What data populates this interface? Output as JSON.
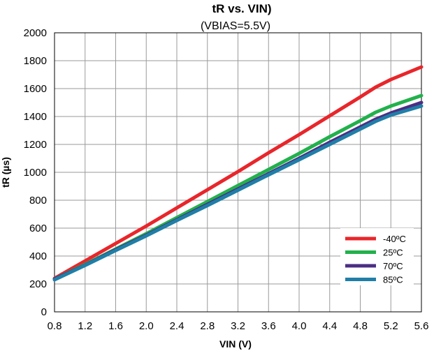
{
  "chart_data": {
    "type": "line",
    "title": "tR vs. VIN)",
    "subtitle": "(VBIAS=5.5V)",
    "xlabel": "VIN (V)",
    "ylabel": "tR (µs)",
    "xlim": [
      0.8,
      5.6
    ],
    "ylim": [
      0,
      2000
    ],
    "x_ticks": [
      "0.8",
      "1.2",
      "1.6",
      "2.0",
      "2.4",
      "2.8",
      "3.2",
      "3.6",
      "4.0",
      "4.4",
      "4.8",
      "5.2",
      "5.6"
    ],
    "y_ticks": [
      "0",
      "200",
      "400",
      "600",
      "800",
      "1000",
      "1200",
      "1400",
      "1600",
      "1800",
      "2000"
    ],
    "grid": true,
    "legend_position": "bottom-right",
    "series": [
      {
        "name": "-40ºC",
        "color": "#e8262b",
        "x": [
          0.8,
          1.2,
          1.6,
          2.0,
          2.4,
          2.8,
          3.2,
          3.6,
          4.0,
          4.4,
          4.8,
          5.0,
          5.2,
          5.6
        ],
        "y": [
          240,
          365,
          490,
          615,
          745,
          875,
          1005,
          1140,
          1270,
          1405,
          1540,
          1610,
          1665,
          1755
        ]
      },
      {
        "name": "25ºC",
        "color": "#22b14c",
        "x": [
          0.8,
          1.2,
          1.6,
          2.0,
          2.4,
          2.8,
          3.2,
          3.6,
          4.0,
          4.4,
          4.8,
          5.0,
          5.2,
          5.6
        ],
        "y": [
          235,
          340,
          450,
          560,
          675,
          790,
          905,
          1020,
          1135,
          1255,
          1370,
          1430,
          1475,
          1550
        ]
      },
      {
        "name": "70ºC",
        "color": "#4b2e83",
        "x": [
          0.8,
          1.2,
          1.6,
          2.0,
          2.4,
          2.8,
          3.2,
          3.6,
          4.0,
          4.4,
          4.8,
          5.0,
          5.2,
          5.6
        ],
        "y": [
          235,
          335,
          445,
          550,
          660,
          770,
          880,
          990,
          1100,
          1215,
          1325,
          1380,
          1425,
          1500
        ]
      },
      {
        "name": "85ºC",
        "color": "#1f7fa8",
        "x": [
          0.8,
          1.2,
          1.6,
          2.0,
          2.4,
          2.8,
          3.2,
          3.6,
          4.0,
          4.4,
          4.8,
          5.0,
          5.2,
          5.6
        ],
        "y": [
          230,
          333,
          440,
          545,
          655,
          762,
          872,
          982,
          1090,
          1200,
          1310,
          1365,
          1410,
          1475
        ]
      }
    ]
  }
}
